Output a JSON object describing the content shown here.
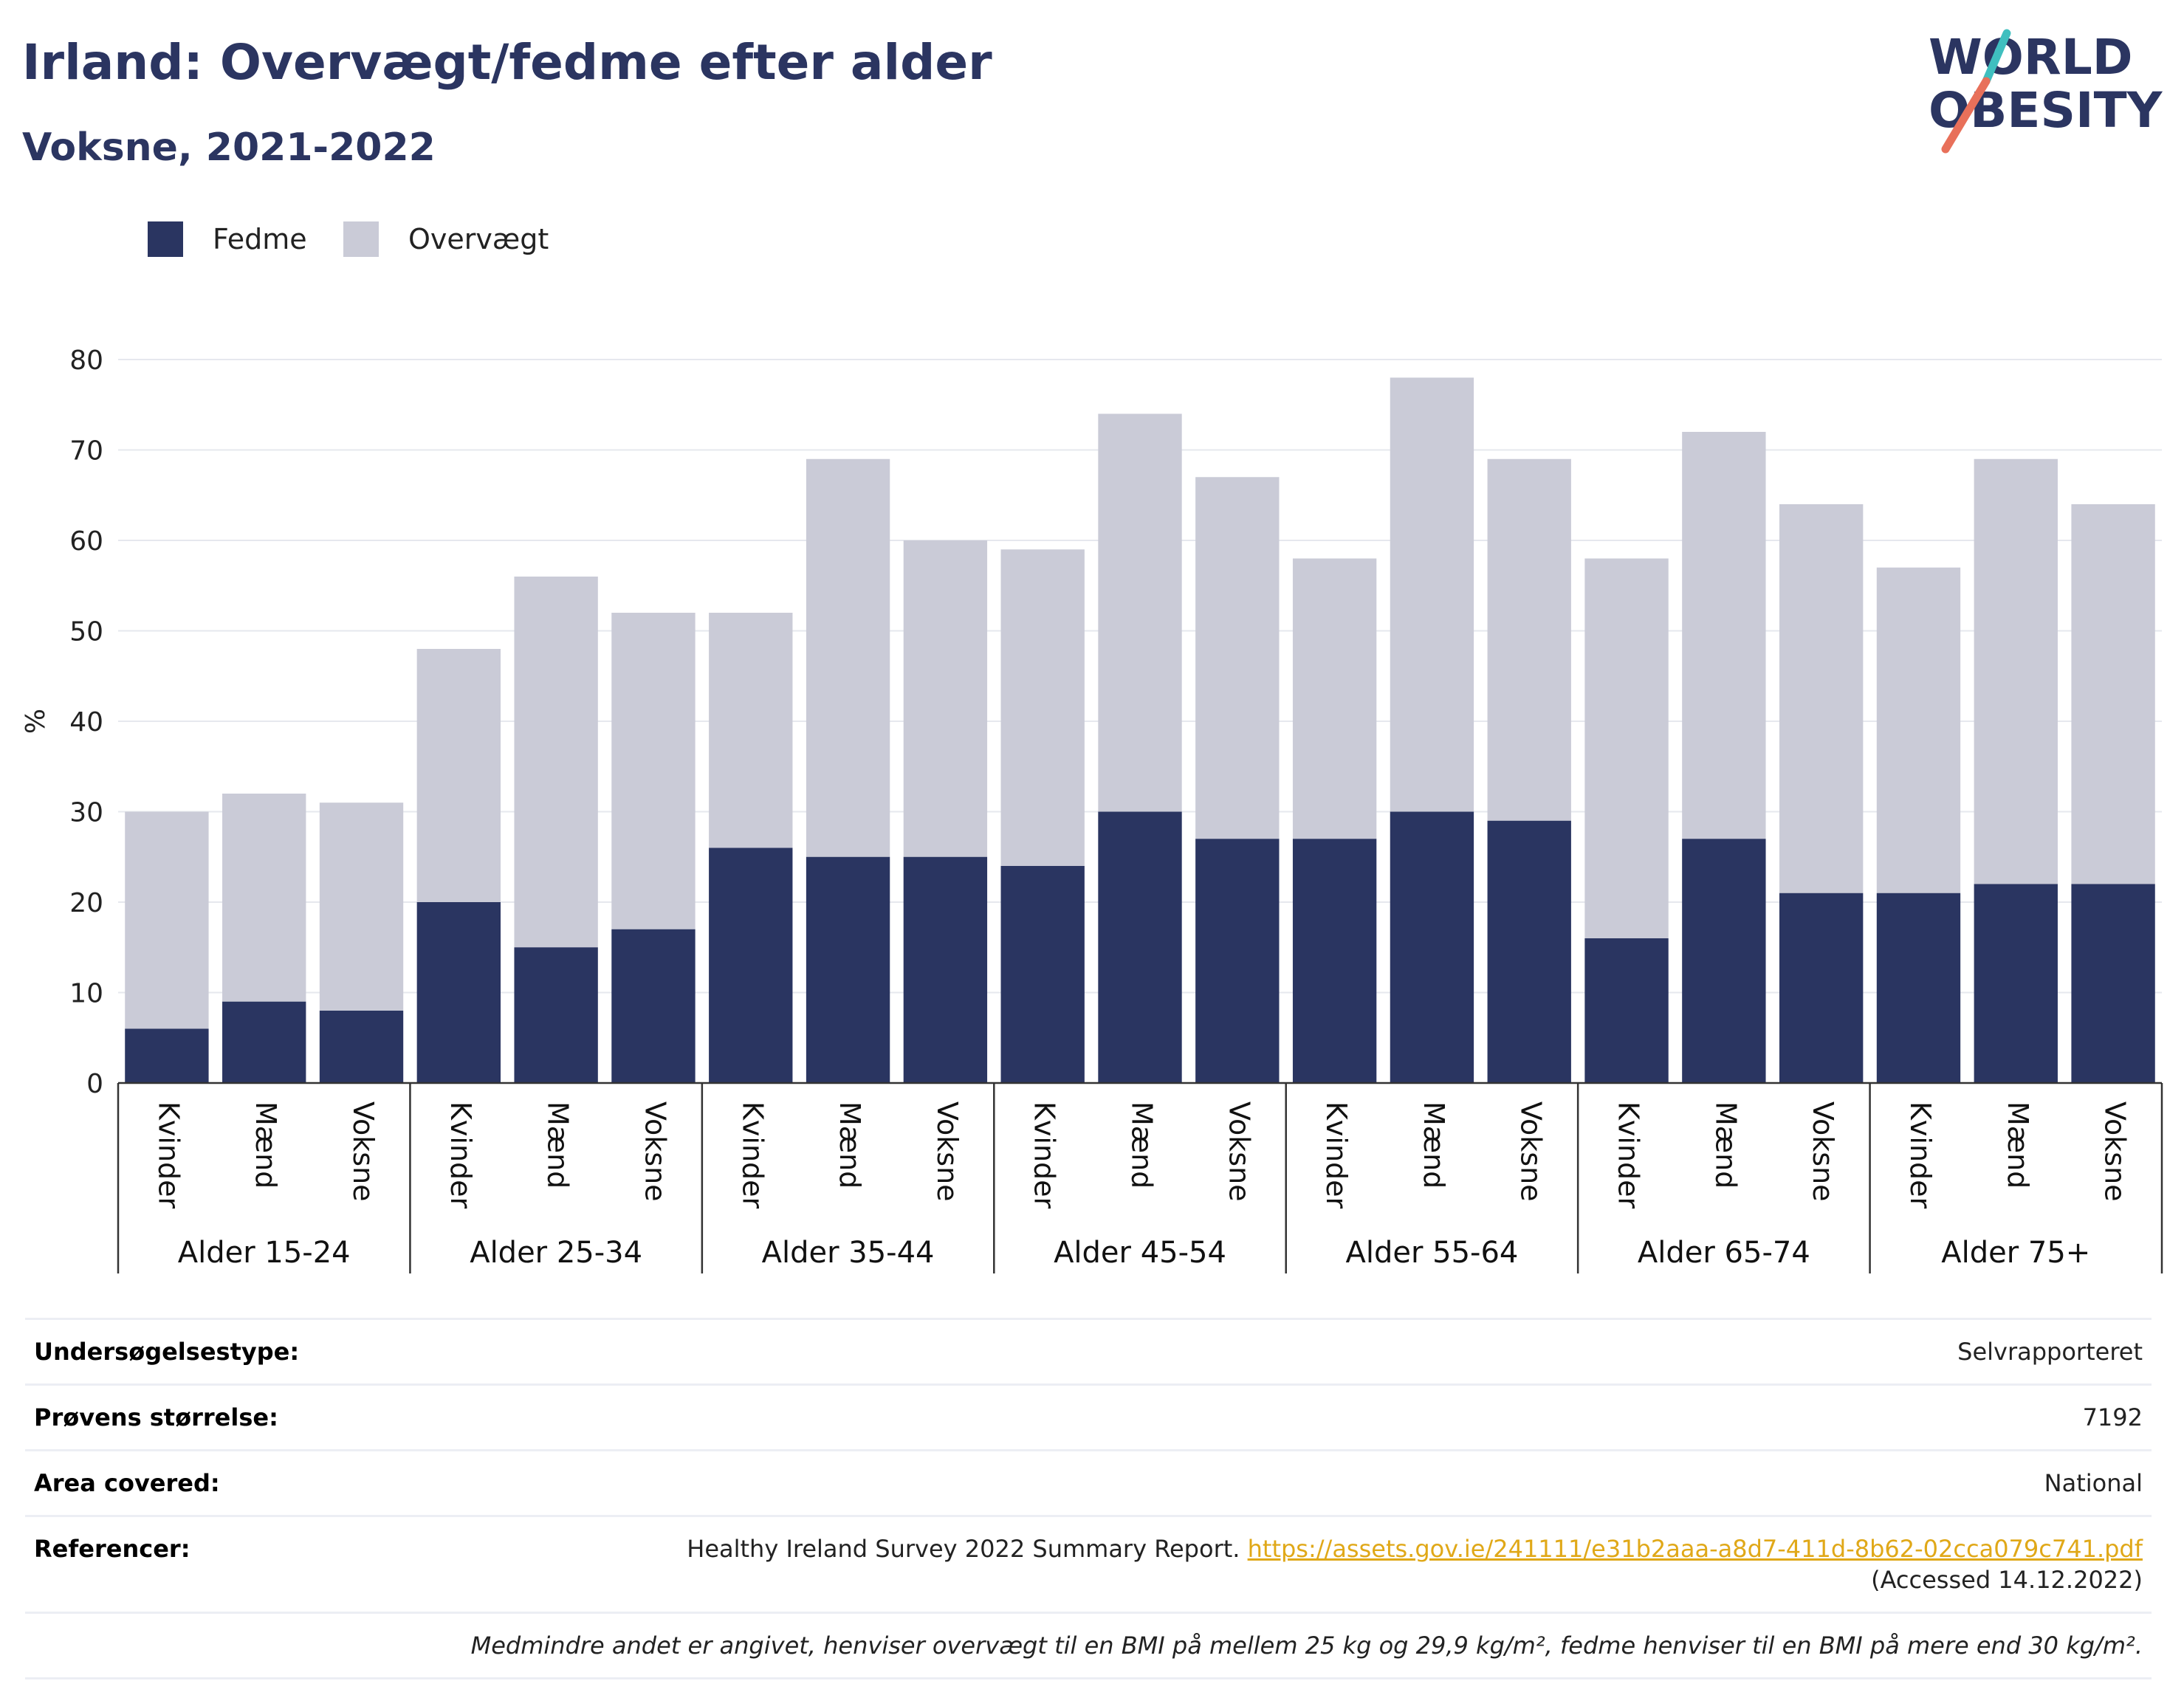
{
  "title": "Irland: Overvægt/fedme efter alder",
  "subtitle": "Voksne, 2021-2022",
  "logo": {
    "line1": "WORLD",
    "line2": "OBESITY",
    "colors": {
      "text": "#2b3561",
      "accent_teal": "#3fbfbf",
      "accent_coral": "#e8705a"
    }
  },
  "legend": [
    {
      "label": "Fedme",
      "color": "#2a3561"
    },
    {
      "label": "Overvægt",
      "color": "#cacbd7"
    }
  ],
  "chart_data": {
    "type": "bar",
    "stacked": true,
    "ylabel": "%",
    "ylim": [
      0,
      80
    ],
    "yticks": [
      0,
      10,
      20,
      30,
      40,
      50,
      60,
      70,
      80
    ],
    "grid": true,
    "legend_position": "top-left",
    "groups": [
      {
        "label": "Alder 15-24",
        "categories": [
          "Kvinder",
          "Mænd",
          "Voksne"
        ],
        "fedme": [
          6,
          9,
          8
        ],
        "overvaegt": [
          24,
          23,
          23
        ]
      },
      {
        "label": "Alder 25-34",
        "categories": [
          "Kvinder",
          "Mænd",
          "Voksne"
        ],
        "fedme": [
          20,
          15,
          17
        ],
        "overvaegt": [
          28,
          41,
          35
        ]
      },
      {
        "label": "Alder 35-44",
        "categories": [
          "Kvinder",
          "Mænd",
          "Voksne"
        ],
        "fedme": [
          26,
          25,
          25
        ],
        "overvaegt": [
          26,
          44,
          35
        ]
      },
      {
        "label": "Alder 45-54",
        "categories": [
          "Kvinder",
          "Mænd",
          "Voksne"
        ],
        "fedme": [
          24,
          30,
          27
        ],
        "overvaegt": [
          35,
          44,
          40
        ]
      },
      {
        "label": "Alder 55-64",
        "categories": [
          "Kvinder",
          "Mænd",
          "Voksne"
        ],
        "fedme": [
          27,
          30,
          29
        ],
        "overvaegt": [
          31,
          48,
          40
        ]
      },
      {
        "label": "Alder 65-74",
        "categories": [
          "Kvinder",
          "Mænd",
          "Voksne"
        ],
        "fedme": [
          16,
          27,
          21
        ],
        "overvaegt": [
          42,
          45,
          43
        ]
      },
      {
        "label": "Alder 75+",
        "categories": [
          "Kvinder",
          "Mænd",
          "Voksne"
        ],
        "fedme": [
          21,
          22,
          22
        ],
        "overvaegt": [
          36,
          47,
          42
        ]
      }
    ]
  },
  "info": {
    "survey_type_label": "Undersøgelsestype:",
    "survey_type_value": "Selvrapporteret",
    "sample_size_label": "Prøvens størrelse:",
    "sample_size_value": "7192",
    "area_label": "Area covered:",
    "area_value": "National",
    "references_label": "Referencer:",
    "references_text": "Healthy Ireland Survey 2022 Summary Report. ",
    "references_link": "https://assets.gov.ie/241111/e31b2aaa-a8d7-411d-8b62-02cca079c741.pdf",
    "references_suffix": " (Accessed 14.12.2022)",
    "note": "Medmindre andet er angivet, henviser overvægt til en BMI på mellem 25 kg og 29,9 kg/m², fedme henviser til en BMI på mere end 30 kg/m²."
  }
}
